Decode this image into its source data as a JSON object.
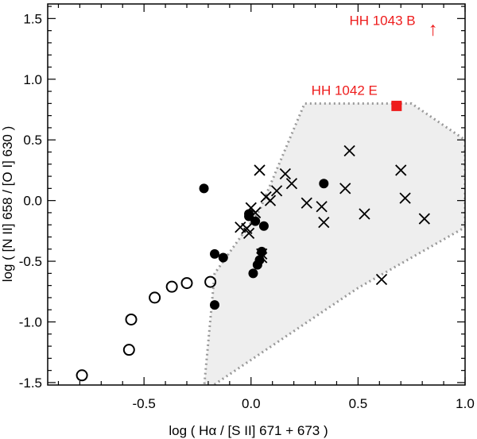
{
  "chart_data": {
    "type": "scatter",
    "xlabel": "log ( Hα / [S II] 671 + 673 )",
    "ylabel": "log ( [N II] 658 / [O I] 630 )",
    "xlim": [
      -0.95,
      1.0
    ],
    "ylim": [
      -1.52,
      1.62
    ],
    "xticks": [
      -0.5,
      0.0,
      0.5,
      1.0
    ],
    "yticks": [
      -1.5,
      -1.0,
      -0.5,
      0.0,
      0.5,
      1.0,
      1.5
    ],
    "xtick_labels": [
      "-0.5",
      "0.0",
      "0.5",
      "1.0"
    ],
    "ytick_labels": [
      "-1.5",
      "-1.0",
      "-0.5",
      "0.0",
      "0.5",
      "1.0",
      "1.5"
    ],
    "region": {
      "name": "shaded region",
      "fill": "#eeeeee",
      "stroke": "#999999",
      "polygon": [
        [
          -0.22,
          -1.55
        ],
        [
          -0.17,
          -0.6
        ],
        [
          0.04,
          -0.08
        ],
        [
          0.25,
          0.8
        ],
        [
          0.75,
          0.8
        ],
        [
          1.0,
          0.5
        ],
        [
          1.0,
          -0.22
        ],
        [
          0.5,
          -0.72
        ],
        [
          -0.2,
          -1.55
        ]
      ]
    },
    "series": [
      {
        "name": "open circles",
        "marker": "open-circle",
        "x": [
          -0.79,
          -0.57,
          -0.56,
          -0.45,
          -0.37,
          -0.3,
          -0.19
        ],
        "y": [
          -1.44,
          -1.23,
          -0.98,
          -0.8,
          -0.71,
          -0.68,
          -0.67
        ]
      },
      {
        "name": "filled circles",
        "marker": "filled-circle",
        "x": [
          -0.22,
          -0.17,
          -0.17,
          -0.13,
          -0.01,
          0.01,
          0.02,
          0.03,
          0.04,
          0.05,
          0.06,
          0.34,
          -0.01
        ],
        "y": [
          0.1,
          -0.86,
          -0.44,
          -0.47,
          -0.11,
          -0.6,
          -0.17,
          -0.53,
          -0.49,
          -0.42,
          -0.21,
          0.14,
          -0.13
        ]
      },
      {
        "name": "crosses",
        "marker": "cross",
        "x": [
          -0.05,
          -0.02,
          -0.01,
          0.0,
          0.02,
          0.04,
          0.05,
          0.07,
          0.09,
          0.12,
          0.16,
          0.19,
          0.26,
          0.33,
          0.34,
          0.44,
          0.46,
          0.53,
          0.61,
          0.7,
          0.72,
          0.81,
          0.05
        ],
        "y": [
          -0.22,
          -0.23,
          -0.27,
          -0.06,
          -0.1,
          0.25,
          -0.47,
          0.03,
          0.0,
          0.08,
          0.22,
          0.14,
          -0.02,
          -0.05,
          -0.18,
          0.1,
          0.41,
          -0.11,
          -0.65,
          0.25,
          0.02,
          -0.15,
          -0.44
        ]
      }
    ],
    "highlight": {
      "label": "HH 1042 E",
      "x": 0.68,
      "y": 0.78,
      "color": "#ee1c1c"
    },
    "annotations": [
      {
        "label": "HH 1043 B",
        "arrow": "↑",
        "arrow_x": 0.85,
        "arrow_y": 1.42,
        "color": "#ee1c1c"
      }
    ]
  }
}
